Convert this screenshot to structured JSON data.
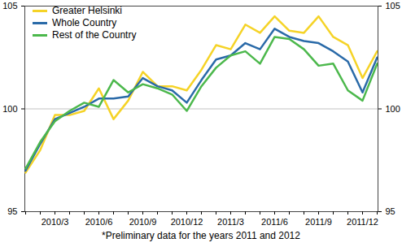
{
  "chart_data": {
    "type": "line",
    "categories": [
      null,
      null,
      "2010/3",
      null,
      null,
      "2010/6",
      null,
      null,
      "2010/9",
      null,
      null,
      "2010/12",
      null,
      null,
      "2011/3",
      null,
      null,
      "2011/6",
      null,
      null,
      "2011/9",
      null,
      null,
      "2011/12",
      null
    ],
    "series": [
      {
        "name": "Greater Helsinki",
        "color": "#f5d327",
        "values": [
          96.9,
          98.0,
          99.7,
          99.7,
          99.9,
          101.0,
          99.5,
          100.4,
          101.8,
          101.1,
          101.1,
          100.9,
          101.9,
          103.1,
          102.9,
          104.1,
          103.7,
          104.5,
          103.8,
          103.7,
          104.5,
          103.5,
          103.1,
          101.5,
          102.8
        ]
      },
      {
        "name": "Whole Country",
        "color": "#2a6aa8",
        "values": [
          97.0,
          98.3,
          99.5,
          99.8,
          100.1,
          100.5,
          100.5,
          100.6,
          101.5,
          101.1,
          100.9,
          100.3,
          101.4,
          102.4,
          102.6,
          103.2,
          102.9,
          103.9,
          103.5,
          103.3,
          103.2,
          102.8,
          102.3,
          100.8,
          102.5
        ]
      },
      {
        "name": "Rest of the Country",
        "color": "#4cb84c",
        "values": [
          97.1,
          98.4,
          99.4,
          99.9,
          100.3,
          100.1,
          101.4,
          100.8,
          101.2,
          101.0,
          100.7,
          99.9,
          101.1,
          102.0,
          102.6,
          102.8,
          102.2,
          103.5,
          103.4,
          102.9,
          102.1,
          102.2,
          100.9,
          100.4,
          102.2
        ]
      }
    ],
    "ylim": [
      95,
      105
    ],
    "yticks": [
      95,
      100,
      105
    ],
    "grid": true,
    "legend": "top-left",
    "note": "*Preliminary data for the years 2011 and 2012"
  }
}
